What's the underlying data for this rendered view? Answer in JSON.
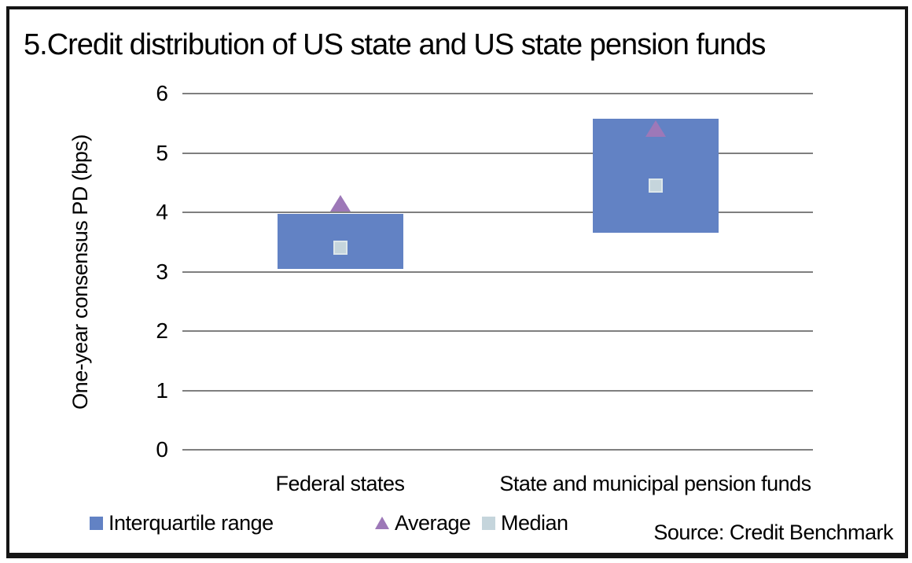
{
  "chart_data": {
    "type": "bar",
    "subtype": "floating-range-bar-with-markers",
    "title": "5.Credit distribution of US state and US state pension funds",
    "ylabel": "One-year consensus PD (bps)",
    "xlabel": "",
    "ylim": [
      0,
      6
    ],
    "yticks": [
      0,
      1,
      2,
      3,
      4,
      5,
      6
    ],
    "grid": true,
    "legend_position": "bottom",
    "categories": [
      "Federal states",
      "State and municipal pension funds"
    ],
    "series": [
      {
        "name": "Interquartile range",
        "marker": "bar",
        "color": "#6282c4",
        "q1": [
          3.05,
          3.65
        ],
        "q3": [
          3.97,
          5.57
        ]
      },
      {
        "name": "Average",
        "marker": "triangle",
        "color": "#9d78b8",
        "values": [
          4.15,
          5.4
        ]
      },
      {
        "name": "Median",
        "marker": "square",
        "color": "#c5d5dc",
        "values": [
          3.4,
          4.45
        ]
      }
    ],
    "source": "Source: Credit Benchmark",
    "colors": {
      "gridline": "#7f7f7f",
      "frame_border": "#151515",
      "text": "#000000",
      "background": "#ffffff"
    }
  }
}
